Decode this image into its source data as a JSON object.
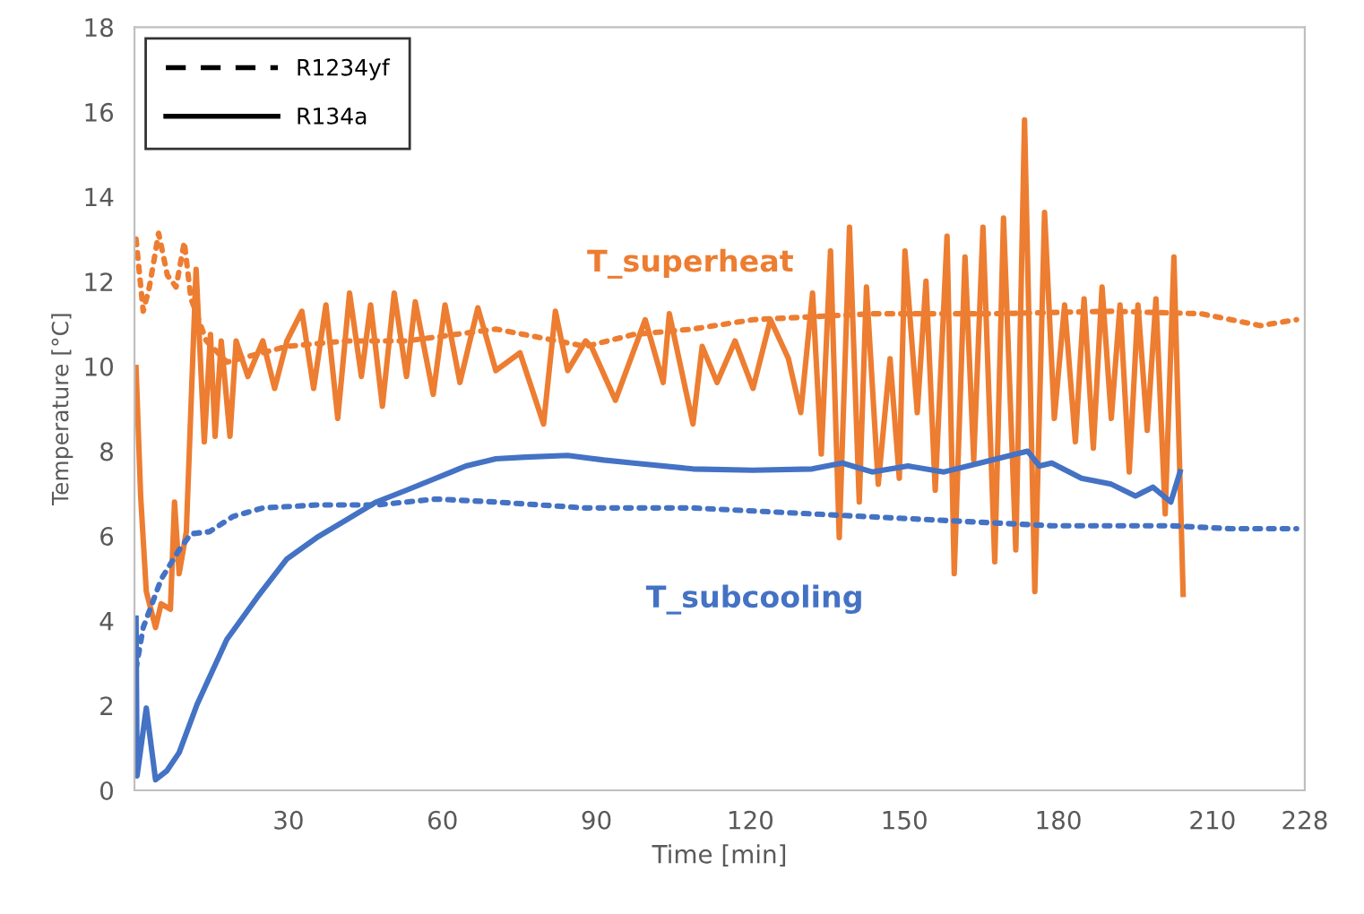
{
  "chart_data": {
    "type": "line",
    "xlabel": "Time [min]",
    "ylabel": "Temperature [°C]",
    "xlim": [
      0,
      228
    ],
    "xticks": [
      30,
      60,
      90,
      120,
      150,
      180,
      210,
      228
    ],
    "ylim": [
      0,
      18
    ],
    "yticks": [
      0,
      2,
      4,
      6,
      8,
      10,
      12,
      14,
      16,
      18
    ],
    "grid": false,
    "marker": "none",
    "series": [
      {
        "color": "#ed7d31",
        "line_style": "dotted",
        "x": [
          0.3,
          1.7,
          2.9,
          4.7,
          6.4,
          8.1,
          9.7,
          11,
          14,
          18,
          29.7,
          41.3,
          53,
          70.4,
          87.9,
          97.2,
          108.8,
          120.5,
          143.7,
          167,
          190.3,
          207.8,
          219.4,
          226.4
        ],
        "values": [
          13.0,
          11.3,
          11.87,
          13.14,
          12.15,
          11.87,
          12.93,
          11.6,
          10.6,
          10.1,
          10.47,
          10.6,
          10.6,
          10.88,
          10.47,
          10.75,
          10.88,
          11.1,
          11.24,
          11.24,
          11.3,
          11.24,
          10.96,
          11.1
        ]
      },
      {
        "color": "#ed7d31",
        "line_style": "solid",
        "x": [
          0.3,
          1.2,
          2.3,
          4.1,
          5.2,
          7,
          7.8,
          8.7,
          10.1,
          12,
          13.6,
          14.8,
          15.7,
          16.9,
          18.6,
          19.8,
          22.1,
          25,
          27.3,
          29.7,
          32.6,
          34.9,
          37.3,
          39.6,
          41.9,
          44.2,
          46,
          48.3,
          50.6,
          53,
          54.7,
          58.2,
          60.5,
          63.4,
          66.9,
          70.4,
          75.1,
          79.7,
          82,
          84.4,
          87.9,
          89,
          93.7,
          99.5,
          103,
          104.2,
          108.8,
          110.6,
          113.5,
          117,
          120.5,
          123.9,
          127.4,
          129.8,
          132.1,
          133.8,
          135.6,
          137.3,
          139.3,
          141.2,
          142.6,
          144.9,
          147.2,
          149,
          150.1,
          152.5,
          154.2,
          156,
          158.3,
          159.7,
          161.8,
          163.5,
          165.3,
          167.6,
          169.3,
          171.7,
          173.4,
          175.4,
          177.3,
          179.2,
          181.2,
          183.3,
          185,
          186.8,
          188.5,
          190.3,
          192,
          193.8,
          195.5,
          197.3,
          199,
          200.8,
          202.5,
          204.3
        ],
        "values": [
          9.97,
          6.94,
          4.69,
          3.84,
          4.4,
          4.27,
          6.8,
          5.11,
          6.1,
          12.29,
          8.22,
          10.75,
          8.35,
          10.6,
          8.35,
          10.6,
          9.76,
          10.6,
          9.48,
          10.6,
          11.3,
          9.48,
          11.45,
          8.77,
          11.73,
          9.76,
          11.45,
          9.06,
          11.73,
          9.76,
          11.52,
          9.34,
          11.45,
          9.62,
          11.38,
          9.9,
          10.32,
          8.64,
          11.3,
          9.9,
          10.6,
          10.47,
          9.2,
          11.1,
          9.62,
          11.24,
          8.64,
          10.47,
          9.62,
          10.6,
          9.48,
          11.1,
          10.18,
          8.91,
          11.73,
          7.93,
          12.72,
          5.96,
          13.28,
          6.8,
          11.87,
          7.22,
          10.18,
          7.36,
          12.72,
          8.91,
          12.01,
          7.08,
          13.07,
          5.11,
          12.58,
          7.79,
          13.28,
          5.39,
          13.5,
          5.67,
          15.81,
          4.69,
          13.63,
          8.77,
          11.45,
          8.22,
          11.59,
          8.07,
          11.87,
          8.77,
          11.45,
          7.51,
          11.45,
          8.49,
          11.59,
          6.52,
          12.58,
          4.62
        ]
      },
      {
        "color": "#4472c4",
        "line_style": "dotted",
        "x": [
          0.3,
          1.7,
          5.2,
          8.7,
          11,
          14.6,
          19.2,
          25,
          35.5,
          47.1,
          58.8,
          70.4,
          87.9,
          108.8,
          132,
          155.4,
          178.7,
          201.9,
          213.6,
          226.4
        ],
        "values": [
          2.87,
          3.84,
          4.98,
          5.67,
          6.05,
          6.1,
          6.46,
          6.66,
          6.73,
          6.73,
          6.87,
          6.8,
          6.66,
          6.66,
          6.52,
          6.38,
          6.24,
          6.24,
          6.17,
          6.17
        ]
      },
      {
        "color": "#4472c4",
        "line_style": "solid",
        "x": [
          0.3,
          0.5,
          2.3,
          4.1,
          6.3,
          8.7,
          12.2,
          18,
          23.9,
          29.7,
          35.5,
          41.3,
          47.1,
          53,
          58.7,
          64.6,
          70.4,
          76.2,
          84.4,
          91.4,
          97.2,
          108.8,
          120.5,
          132,
          137.9,
          143.7,
          150.7,
          157.7,
          164.7,
          174,
          176.3,
          178.7,
          184.5,
          190.3,
          195,
          198.4,
          201.9,
          203.7
        ],
        "values": [
          4.06,
          0.34,
          1.94,
          0.25,
          0.46,
          0.89,
          2.03,
          3.56,
          4.55,
          5.46,
          5.96,
          6.38,
          6.8,
          7.08,
          7.36,
          7.65,
          7.82,
          7.86,
          7.9,
          7.79,
          7.72,
          7.58,
          7.55,
          7.58,
          7.72,
          7.51,
          7.65,
          7.51,
          7.72,
          8.0,
          7.65,
          7.72,
          7.36,
          7.22,
          6.94,
          7.15,
          6.8,
          7.51
        ]
      }
    ],
    "annotations": [
      "R1234yf",
      "R134a",
      "T_superheat",
      "T_subcooling"
    ]
  }
}
